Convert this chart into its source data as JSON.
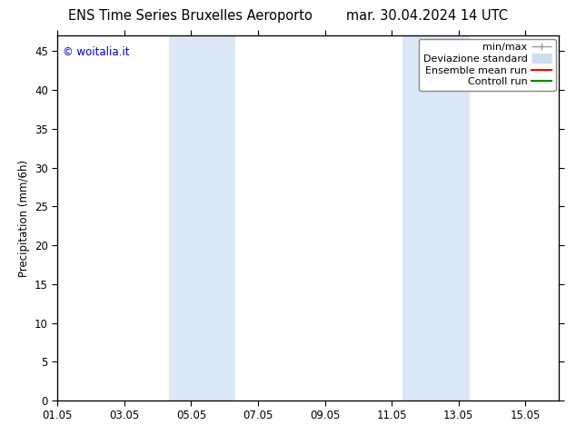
{
  "title_left": "ENS Time Series Bruxelles Aeroporto",
  "title_right": "mar. 30.04.2024 14 UTC",
  "ylabel": "Precipitation (mm/6h)",
  "watermark": "© woitalia.it",
  "watermark_color": "#0000cc",
  "ylim": [
    0,
    47
  ],
  "yticks": [
    0,
    5,
    10,
    15,
    20,
    25,
    30,
    35,
    40,
    45
  ],
  "xlim": [
    0,
    15
  ],
  "xtick_labels": [
    "01.05",
    "03.05",
    "05.05",
    "07.05",
    "09.05",
    "11.05",
    "13.05",
    "15.05"
  ],
  "xtick_positions": [
    0,
    2,
    4,
    6,
    8,
    10,
    12,
    14
  ],
  "shaded_regions": [
    {
      "x_start": 3.33,
      "x_end": 5.33,
      "color": "#dce8f5"
    },
    {
      "x_start": 10.33,
      "x_end": 12.33,
      "color": "#dce8f5"
    }
  ],
  "legend_entries": [
    {
      "label": "min/max",
      "color": "#999999",
      "lw": 1.0
    },
    {
      "label": "Deviazione standard",
      "color": "#ccddef",
      "lw": 8
    },
    {
      "label": "Ensemble mean run",
      "color": "#ff0000",
      "lw": 1.5
    },
    {
      "label": "Controll run",
      "color": "#008800",
      "lw": 1.5
    }
  ],
  "background_color": "#ffffff",
  "plot_bg_color": "#ffffff",
  "tick_color": "#000000",
  "font_size": 8.5,
  "title_font_size": 10.5
}
